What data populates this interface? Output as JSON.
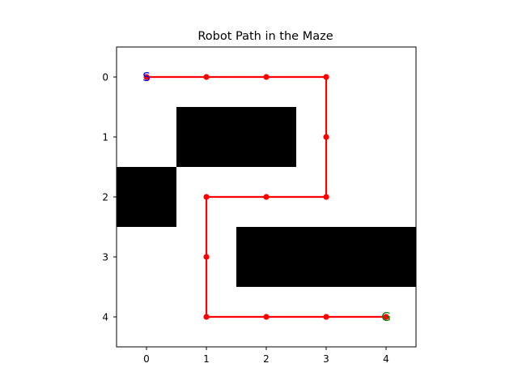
{
  "chart_data": {
    "type": "scatter",
    "title": "Robot Path in the Maze",
    "xlabel": "",
    "ylabel": "",
    "xlim": [
      -0.5,
      4.5
    ],
    "ylim": [
      4.5,
      -0.5
    ],
    "y_inverted": true,
    "grid": false,
    "x_ticks": [
      "0",
      "1",
      "2",
      "3",
      "4"
    ],
    "y_ticks": [
      "0",
      "1",
      "2",
      "3",
      "4"
    ],
    "grid_size": [
      5,
      5
    ],
    "walls": [
      [
        0,
        0,
        0,
        0,
        0
      ],
      [
        0,
        1,
        1,
        0,
        0
      ],
      [
        1,
        0,
        0,
        0,
        0
      ],
      [
        0,
        0,
        1,
        1,
        1
      ],
      [
        0,
        0,
        0,
        0,
        0
      ]
    ],
    "path": {
      "color": "#ff0000",
      "points": [
        [
          0,
          0
        ],
        [
          1,
          0
        ],
        [
          2,
          0
        ],
        [
          3,
          0
        ],
        [
          3,
          1
        ],
        [
          3,
          2
        ],
        [
          2,
          2
        ],
        [
          1,
          2
        ],
        [
          1,
          3
        ],
        [
          1,
          4
        ],
        [
          2,
          4
        ],
        [
          3,
          4
        ],
        [
          4,
          4
        ]
      ]
    },
    "annotations": [
      {
        "text": "S",
        "x": 0,
        "y": 0,
        "color": "#0000ff"
      },
      {
        "text": "G",
        "x": 4,
        "y": 4,
        "color": "#008000"
      }
    ]
  }
}
